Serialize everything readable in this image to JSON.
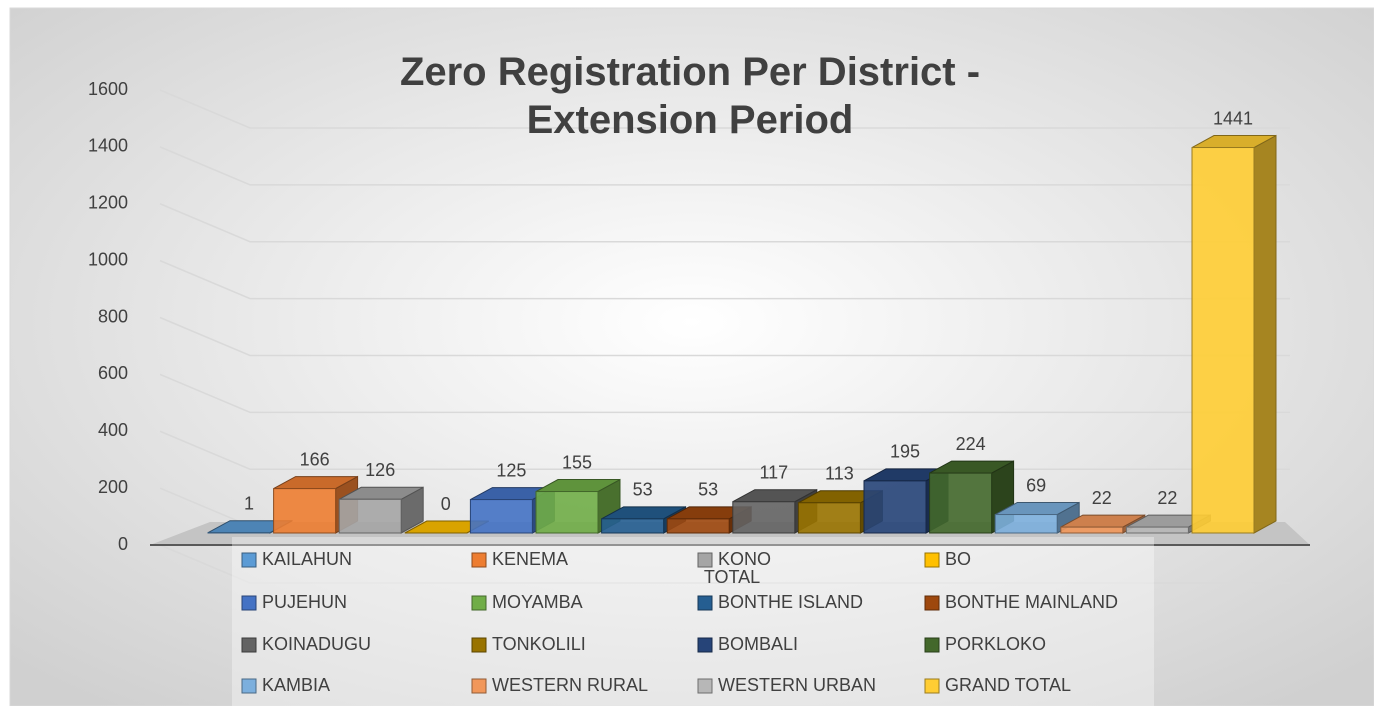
{
  "chart_data": {
    "type": "bar3d",
    "title": "Zero Registration Per District - Extension Period",
    "categories": [
      "TOTAL"
    ],
    "series": [
      {
        "name": "KAILAHUN",
        "color": "#5b9bd5",
        "values": [
          1
        ]
      },
      {
        "name": "KENEMA",
        "color": "#ed7d31",
        "values": [
          166
        ]
      },
      {
        "name": "KONO",
        "color": "#a5a5a5",
        "values": [
          126
        ]
      },
      {
        "name": "BO",
        "color": "#ffc000",
        "values": [
          0
        ]
      },
      {
        "name": "PUJEHUN",
        "color": "#4472c4",
        "values": [
          125
        ]
      },
      {
        "name": "MOYAMBA",
        "color": "#70ad47",
        "values": [
          155
        ]
      },
      {
        "name": "BONTHE ISLAND",
        "color": "#255e91",
        "values": [
          53
        ]
      },
      {
        "name": "BONTHE MAINLAND",
        "color": "#9e480e",
        "values": [
          53
        ]
      },
      {
        "name": "KOINADUGU",
        "color": "#636363",
        "values": [
          117
        ]
      },
      {
        "name": "TONKOLILI",
        "color": "#997300",
        "values": [
          113
        ]
      },
      {
        "name": "BOMBALI",
        "color": "#264478",
        "values": [
          195
        ]
      },
      {
        "name": "PORKLOKO",
        "color": "#43682b",
        "values": [
          224
        ]
      },
      {
        "name": "KAMBIA",
        "color": "#7cafdd",
        "values": [
          69
        ]
      },
      {
        "name": "WESTERN RURAL",
        "color": "#f1975a",
        "values": [
          22
        ]
      },
      {
        "name": "WESTERN URBAN",
        "color": "#b7b7b7",
        "values": [
          22
        ]
      },
      {
        "name": "GRAND TOTAL",
        "color": "#ffcd33",
        "values": [
          1441
        ]
      }
    ],
    "ylim": [
      0,
      1600
    ],
    "yticks": [
      0,
      200,
      400,
      600,
      800,
      1000,
      1200,
      1400,
      1600
    ],
    "grid": true,
    "legend": "bottom"
  }
}
